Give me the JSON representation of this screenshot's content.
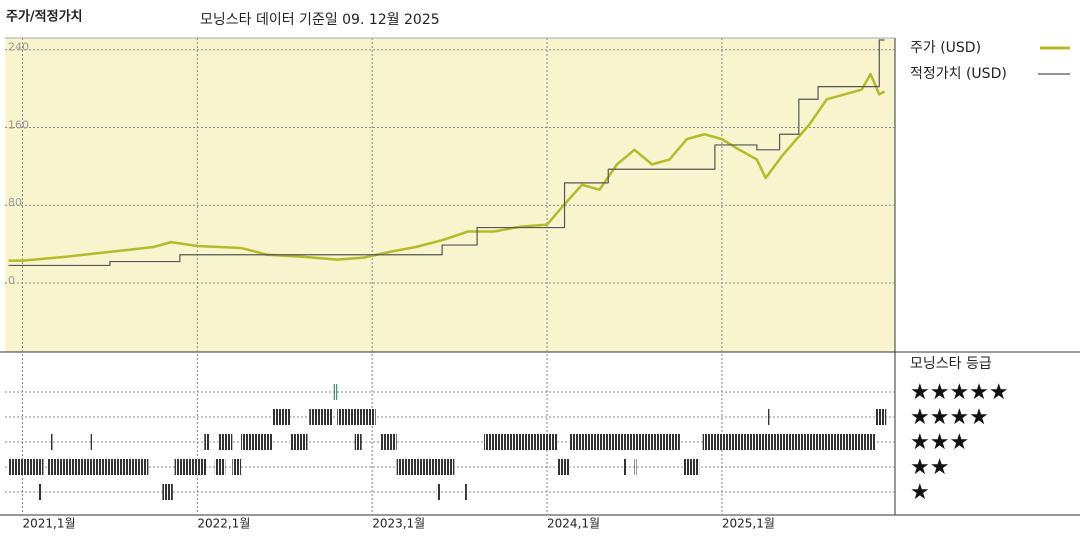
{
  "chart_data": {
    "type": "line",
    "title": "주가/적정가치",
    "subtitle": "모닝스타 데이터 기준일 09. 12월 2025",
    "xlim": [
      2020.9,
      2025.99
    ],
    "xticks": [
      {
        "value": 2021,
        "label": "2021,1월"
      },
      {
        "value": 2022,
        "label": "2022,1월"
      },
      {
        "value": 2023,
        "label": "2023,1월"
      },
      {
        "value": 2024,
        "label": "2024,1월"
      },
      {
        "value": 2025,
        "label": "2025,1월"
      }
    ],
    "ylim": [
      -69,
      250
    ],
    "yticks": [
      0,
      80,
      160,
      240
    ],
    "grid": true,
    "series": [
      {
        "name": "주가 (USD)",
        "color": "#b3bb2a",
        "x": [
          2020.92,
          2021.0,
          2021.25,
          2021.5,
          2021.75,
          2021.85,
          2022.0,
          2022.25,
          2022.4,
          2022.6,
          2022.8,
          2022.95,
          2023.1,
          2023.25,
          2023.4,
          2023.55,
          2023.7,
          2023.85,
          2024.0,
          2024.1,
          2024.2,
          2024.3,
          2024.4,
          2024.5,
          2024.6,
          2024.7,
          2024.8,
          2024.9,
          2025.0,
          2025.1,
          2025.2,
          2025.25,
          2025.35,
          2025.5,
          2025.6,
          2025.7,
          2025.8,
          2025.85,
          2025.9,
          2025.93
        ],
        "values": [
          23,
          23,
          27,
          32,
          37,
          42,
          38,
          36,
          29,
          27,
          24,
          26,
          32,
          37,
          44,
          53,
          53,
          58,
          60,
          81,
          101,
          96,
          122,
          137,
          122,
          127,
          148,
          153,
          148,
          137,
          127,
          108,
          132,
          163,
          189,
          194,
          199,
          215,
          194,
          197
        ]
      },
      {
        "name": "적정가치 (USD)",
        "color": "#555555",
        "step": "post",
        "x": [
          2020.92,
          2021.5,
          2021.9,
          2023.4,
          2023.6,
          2024.1,
          2024.35,
          2024.96,
          2025.2,
          2025.33,
          2025.44,
          2025.55,
          2025.76,
          2025.9,
          2025.93
        ],
        "values": [
          18,
          22,
          29,
          39,
          57,
          103,
          117,
          142,
          137,
          153,
          189,
          202,
          202,
          250,
          250
        ]
      }
    ],
    "ratings_title": "모닝스타 등급",
    "rating_labels": [
      "★★★★★",
      "★★★★",
      "★★★",
      "★★",
      "★"
    ],
    "rating_color": "#333333",
    "top_rating_color": "#4f8f72",
    "ratings": [
      {
        "start": 2020.92,
        "end": 2021.12,
        "stars": 2
      },
      {
        "start": 2021.14,
        "end": 2021.72,
        "stars": 2
      },
      {
        "start": 2021.87,
        "end": 2022.05,
        "stars": 2
      },
      {
        "start": 2022.1,
        "end": 2022.16,
        "stars": 2
      },
      {
        "start": 2022.2,
        "end": 2022.25,
        "stars": 2
      },
      {
        "start": 2023.14,
        "end": 2023.47,
        "stars": 2
      },
      {
        "start": 2024.06,
        "end": 2024.13,
        "stars": 2
      },
      {
        "start": 2024.44,
        "end": 2024.45,
        "stars": 2
      },
      {
        "start": 2024.5,
        "end": 2024.51,
        "stars": 2
      },
      {
        "start": 2024.78,
        "end": 2024.87,
        "stars": 2
      },
      {
        "start": 2021.09,
        "end": 2021.11,
        "stars": 1
      },
      {
        "start": 2021.8,
        "end": 2021.86,
        "stars": 1
      },
      {
        "start": 2023.37,
        "end": 2023.39,
        "stars": 1
      },
      {
        "start": 2023.53,
        "end": 2023.54,
        "stars": 1
      },
      {
        "start": 2021.16,
        "end": 2021.17,
        "stars": 3
      },
      {
        "start": 2021.39,
        "end": 2021.4,
        "stars": 3
      },
      {
        "start": 2022.04,
        "end": 2022.07,
        "stars": 3
      },
      {
        "start": 2022.12,
        "end": 2022.2,
        "stars": 3
      },
      {
        "start": 2022.25,
        "end": 2022.43,
        "stars": 3
      },
      {
        "start": 2022.53,
        "end": 2022.63,
        "stars": 3
      },
      {
        "start": 2022.9,
        "end": 2022.94,
        "stars": 3
      },
      {
        "start": 2023.05,
        "end": 2023.14,
        "stars": 3
      },
      {
        "start": 2023.64,
        "end": 2024.06,
        "stars": 3
      },
      {
        "start": 2024.13,
        "end": 2024.76,
        "stars": 3
      },
      {
        "start": 2024.89,
        "end": 2025.88,
        "stars": 3
      },
      {
        "start": 2022.43,
        "end": 2022.53,
        "stars": 4
      },
      {
        "start": 2022.64,
        "end": 2022.77,
        "stars": 4
      },
      {
        "start": 2022.8,
        "end": 2023.02,
        "stars": 4
      },
      {
        "start": 2025.26,
        "end": 2025.27,
        "stars": 4
      },
      {
        "start": 2025.88,
        "end": 2025.94,
        "stars": 4
      },
      {
        "start": 2022.78,
        "end": 2022.8,
        "stars": 5
      }
    ]
  }
}
